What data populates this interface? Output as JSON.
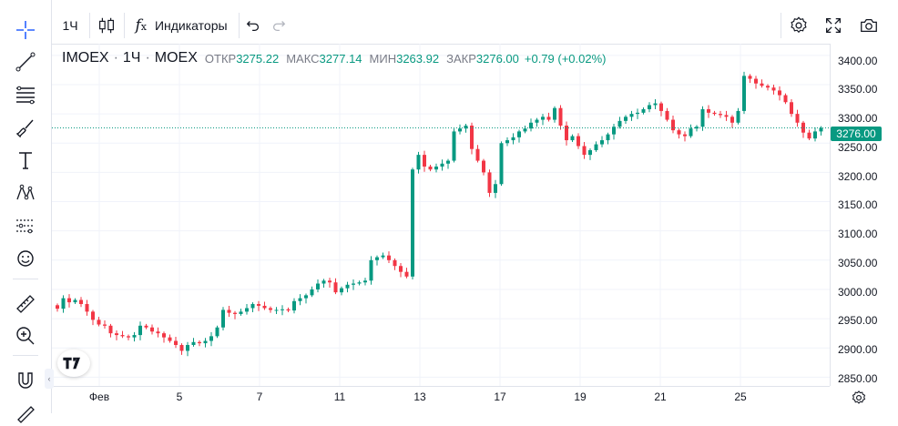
{
  "toolbar": {
    "interval_label": "1Ч",
    "indicators_label": "Индикаторы"
  },
  "legend": {
    "symbol": "IMOEX",
    "interval": "1Ч",
    "exchange": "MOEX",
    "open_label": "ОТКР",
    "open_value": "3275.22",
    "high_label": "МАКС",
    "high_value": "3277.14",
    "low_label": "МИН",
    "low_value": "3263.92",
    "close_label": "ЗАКР",
    "close_value": "3276.00",
    "change": "+0.79 (+0.02%)"
  },
  "price_axis": {
    "ticks": [
      "3400.00",
      "3350.00",
      "3300.00",
      "3250.00",
      "3200.00",
      "3150.00",
      "3100.00",
      "3050.00",
      "3000.00",
      "2950.00",
      "2900.00",
      "2850.00"
    ],
    "current_price_label": "3276.00"
  },
  "time_axis": {
    "ticks": [
      "Фев",
      "5",
      "7",
      "11",
      "13",
      "17",
      "19",
      "21",
      "25"
    ]
  },
  "colors": {
    "up": "#089981",
    "down": "#f23645",
    "grid": "#f0f3fa",
    "axis_text": "#131722"
  },
  "chart_data": {
    "type": "candlestick",
    "ylim": [
      2835,
      3420
    ],
    "price_line": 3276.0,
    "closes": [
      2967,
      2985,
      2978,
      2982,
      2975,
      2962,
      2948,
      2940,
      2938,
      2925,
      2922,
      2920,
      2918,
      2922,
      2938,
      2935,
      2928,
      2925,
      2918,
      2912,
      2905,
      2895,
      2905,
      2910,
      2908,
      2912,
      2920,
      2935,
      2965,
      2960,
      2958,
      2962,
      2968,
      2975,
      2972,
      2968,
      2965,
      2965,
      2966,
      2964,
      2980,
      2985,
      2990,
      3000,
      3010,
      3015,
      3012,
      2995,
      3002,
      3008,
      3010,
      3012,
      3015,
      3050,
      3055,
      3058,
      3050,
      3040,
      3030,
      3022,
      3205,
      3230,
      3210,
      3205,
      3210,
      3215,
      3220,
      3270,
      3275,
      3280,
      3240,
      3220,
      3200,
      3165,
      3180,
      3250,
      3255,
      3260,
      3270,
      3275,
      3285,
      3290,
      3295,
      3290,
      3310,
      3280,
      3255,
      3262,
      3245,
      3230,
      3238,
      3248,
      3255,
      3265,
      3278,
      3288,
      3295,
      3300,
      3302,
      3308,
      3315,
      3318,
      3305,
      3290,
      3272,
      3265,
      3262,
      3275,
      3278,
      3308,
      3302,
      3300,
      3298,
      3295,
      3285,
      3305,
      3365,
      3360,
      3352,
      3348,
      3345,
      3340,
      3332,
      3320,
      3300,
      3285,
      3268,
      3258,
      3270,
      3276
    ]
  }
}
